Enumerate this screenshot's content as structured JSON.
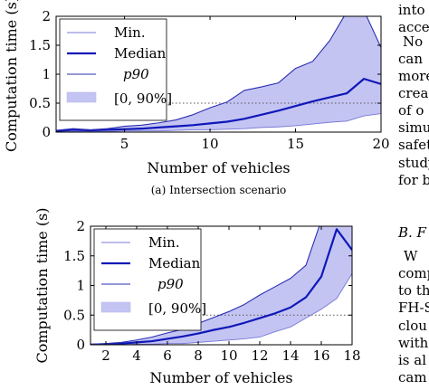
{
  "colors": {
    "band_fill": "#c4c4f3",
    "band_edge": "#b9b9ef",
    "min_line": "#7a7ad6",
    "median_line": "#0f18b8",
    "p90_line": "#2a2fb0",
    "threshold_line": "#555555"
  },
  "chart_data": [
    {
      "type": "area",
      "caption": "(a) Intersection scenario",
      "xlabel": "Number of vehicles",
      "ylabel": "Computation time (s)",
      "xlim": [
        1,
        20
      ],
      "ylim": [
        0,
        2
      ],
      "x_ticks": [
        "5",
        "10",
        "15",
        "20"
      ],
      "y_ticks": [
        "0",
        "0.5",
        "1",
        "1.5",
        "2"
      ],
      "reference_line_y": 0.5,
      "grid": false,
      "legend_position": "top-left",
      "legend": [
        "Min.",
        "Median",
        "p90",
        "[0, 90%]"
      ],
      "x": [
        1,
        2,
        3,
        4,
        5,
        6,
        7,
        8,
        9,
        10,
        11,
        12,
        13,
        14,
        15,
        16,
        17,
        18,
        19,
        20
      ],
      "series": [
        {
          "name": "Min.",
          "values": [
            0.0,
            0.01,
            0.01,
            0.01,
            0.02,
            0.02,
            0.02,
            0.03,
            0.04,
            0.04,
            0.05,
            0.06,
            0.08,
            0.09,
            0.11,
            0.14,
            0.17,
            0.19,
            0.28,
            0.32
          ]
        },
        {
          "name": "Median",
          "values": [
            0.02,
            0.04,
            0.03,
            0.04,
            0.05,
            0.06,
            0.08,
            0.1,
            0.12,
            0.15,
            0.18,
            0.23,
            0.3,
            0.37,
            0.45,
            0.53,
            0.6,
            0.67,
            0.92,
            0.83
          ]
        },
        {
          "name": "p90",
          "values": [
            0.03,
            0.06,
            0.04,
            0.06,
            0.1,
            0.12,
            0.16,
            0.21,
            0.3,
            0.42,
            0.52,
            0.72,
            0.78,
            0.85,
            1.1,
            1.22,
            1.58,
            2.08,
            2.1,
            1.46
          ]
        }
      ]
    },
    {
      "type": "area",
      "caption": "",
      "xlabel": "Number of vehicles",
      "ylabel": "Computation time (s)",
      "xlim": [
        1,
        18
      ],
      "ylim": [
        0,
        2
      ],
      "x_ticks": [
        "2",
        "4",
        "6",
        "8",
        "10",
        "12",
        "14",
        "16",
        "18"
      ],
      "y_ticks": [
        "0",
        "0.5",
        "1",
        "1.5",
        "2"
      ],
      "reference_line_y": 0.5,
      "grid": false,
      "legend_position": "top-left",
      "legend": [
        "Min.",
        "Median",
        "p90",
        "[0, 90%]"
      ],
      "x": [
        1,
        2,
        3,
        4,
        5,
        6,
        7,
        8,
        9,
        10,
        11,
        12,
        13,
        14,
        15,
        16,
        17,
        18
      ],
      "series": [
        {
          "name": "Min.",
          "values": [
            0.0,
            0.0,
            0.0,
            0.01,
            0.01,
            0.02,
            0.02,
            0.04,
            0.06,
            0.08,
            0.1,
            0.13,
            0.22,
            0.3,
            0.45,
            0.6,
            0.78,
            1.2
          ]
        },
        {
          "name": "Median",
          "values": [
            0.0,
            0.01,
            0.02,
            0.04,
            0.06,
            0.1,
            0.14,
            0.19,
            0.25,
            0.3,
            0.37,
            0.45,
            0.53,
            0.63,
            0.8,
            1.15,
            1.95,
            1.6
          ]
        },
        {
          "name": "p90",
          "values": [
            0.01,
            0.02,
            0.04,
            0.08,
            0.13,
            0.2,
            0.26,
            0.36,
            0.46,
            0.56,
            0.68,
            0.84,
            0.98,
            1.12,
            1.34,
            2.1,
            2.2,
            2.3
          ]
        }
      ]
    }
  ],
  "side_text": {
    "lines_top": [
      "into",
      "acce",
      "No",
      "can",
      "more",
      "creas",
      "of o",
      "simu",
      "safet",
      "study",
      "for b"
    ],
    "section_heading": "B. F",
    "lines_bottom": [
      "W",
      "comp",
      "to th",
      "FH-S",
      "clou",
      "with",
      "is al",
      "cam"
    ]
  }
}
